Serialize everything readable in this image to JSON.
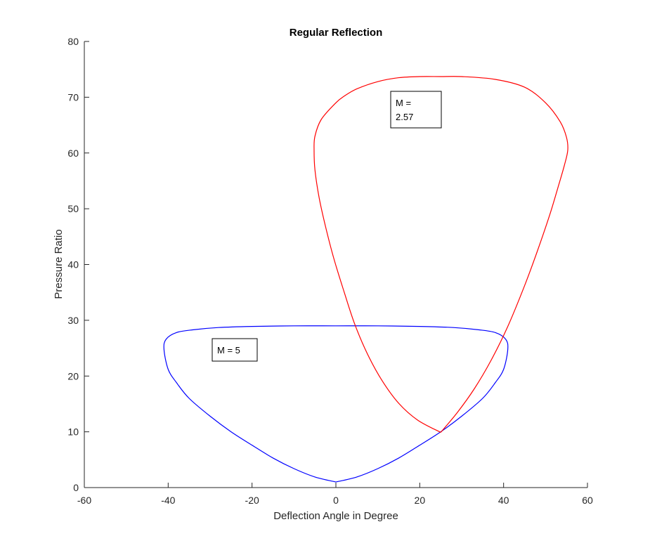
{
  "chart_data": {
    "type": "line",
    "title": "Regular Reflection",
    "xlabel": "Deflection Angle in Degree",
    "ylabel": "Pressure Ratio",
    "xlim": [
      -60,
      60
    ],
    "ylim": [
      0,
      80
    ],
    "xticks": [
      "-60",
      "-40",
      "-20",
      "0",
      "20",
      "40",
      "60"
    ],
    "yticks": [
      "0",
      "10",
      "20",
      "30",
      "40",
      "50",
      "60",
      "70",
      "80"
    ],
    "grid": false,
    "series": [
      {
        "color": "#0000ff",
        "x": [
          0,
          5,
          10,
          15,
          20,
          25,
          30,
          35,
          38,
          40,
          41,
          40.5,
          38,
          34,
          28,
          20,
          10,
          0,
          -10,
          -20,
          -28,
          -34,
          -38,
          -40.5,
          -41,
          -40,
          -38,
          -35,
          -30,
          -25,
          -20,
          -15,
          -10,
          -5,
          0
        ],
        "y": [
          1,
          1.9,
          3.4,
          5.3,
          7.6,
          10.0,
          12.8,
          16.0,
          18.8,
          21.2,
          24.8,
          26.6,
          27.8,
          28.3,
          28.7,
          28.9,
          29.0,
          29.0,
          29.0,
          28.9,
          28.7,
          28.3,
          27.8,
          26.6,
          24.8,
          21.2,
          18.8,
          16.0,
          12.8,
          10.0,
          7.6,
          5.3,
          3.4,
          1.9,
          1
        ]
      },
      {
        "color": "#ff0000",
        "x": [
          25,
          29,
          33,
          37,
          41,
          45,
          48,
          51,
          53,
          54.5,
          55.3,
          55,
          53.5,
          50,
          45,
          38,
          30,
          25,
          20,
          15,
          10,
          5,
          2,
          0,
          -3.5,
          -5,
          -5.2,
          -5,
          -4,
          -2.5,
          -0.5,
          2,
          4.5,
          7.5,
          11,
          15,
          19.5,
          25
        ],
        "y": [
          9.9,
          13.5,
          17.7,
          22.8,
          28.9,
          36.2,
          42.3,
          48.9,
          53.9,
          57.8,
          60.5,
          62.8,
          65.6,
          69.0,
          71.8,
          73.2,
          73.7,
          73.7,
          73.7,
          73.5,
          72.8,
          71.5,
          70.2,
          69.0,
          66.0,
          63.0,
          60.5,
          57.0,
          52.0,
          46.9,
          41.1,
          35.0,
          29.3,
          24.0,
          19.2,
          15.1,
          12.1,
          9.9
        ]
      }
    ],
    "annotations": [
      {
        "lines": [
          "M =",
          "2.57"
        ]
      },
      {
        "lines": [
          "M = 5"
        ]
      }
    ]
  }
}
